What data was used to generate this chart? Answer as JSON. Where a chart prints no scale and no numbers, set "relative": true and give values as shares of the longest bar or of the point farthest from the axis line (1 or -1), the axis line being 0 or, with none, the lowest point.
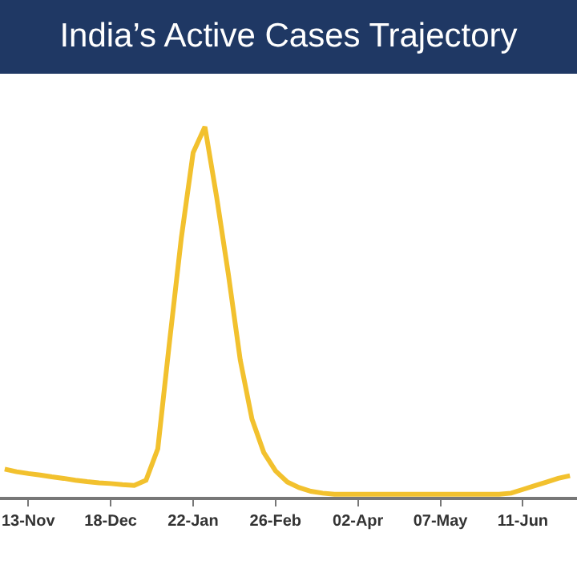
{
  "chart_data": {
    "type": "line",
    "title": "India’s Active Cases Trajectory",
    "relative": true,
    "categories": [
      null,
      null,
      "13-Nov",
      null,
      null,
      null,
      null,
      null,
      null,
      "18-Dec",
      null,
      null,
      null,
      null,
      null,
      null,
      "22-Jan",
      null,
      null,
      null,
      null,
      null,
      null,
      "26-Feb",
      null,
      null,
      null,
      null,
      null,
      null,
      "02-Apr",
      null,
      null,
      null,
      null,
      null,
      null,
      "07-May",
      null,
      null,
      null,
      null,
      null,
      null,
      "11-Jun",
      null,
      null,
      null,
      null
    ],
    "series": [
      {
        "color": "#f2c12e",
        "values": [
          0.075,
          0.068,
          0.063,
          0.059,
          0.054,
          0.05,
          0.045,
          0.041,
          0.038,
          0.036,
          0.033,
          0.031,
          0.045,
          0.13,
          0.42,
          0.7,
          0.93,
          1.0,
          0.81,
          0.6,
          0.37,
          0.21,
          0.12,
          0.07,
          0.04,
          0.025,
          0.015,
          0.01,
          0.007,
          0.007,
          0.007,
          0.007,
          0.007,
          0.007,
          0.007,
          0.007,
          0.007,
          0.007,
          0.007,
          0.007,
          0.007,
          0.007,
          0.007,
          0.01,
          0.02,
          0.03,
          0.04,
          0.05,
          0.057
        ]
      }
    ],
    "grid": false,
    "marker": "none",
    "line_style": "solid"
  }
}
